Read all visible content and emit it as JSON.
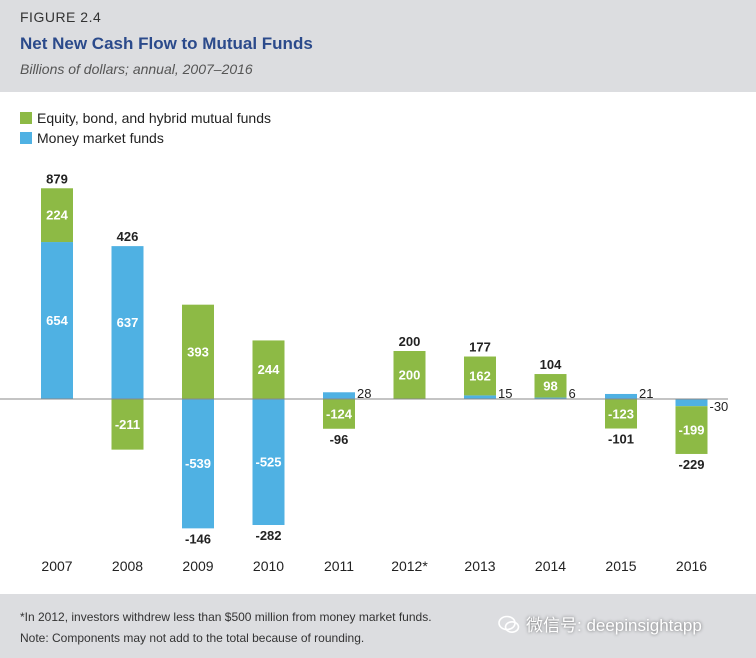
{
  "header": {
    "figure_label": "FIGURE 2.4",
    "title": "Net New Cash Flow to Mutual Funds",
    "subtitle": "Billions of dollars; annual, 2007–2016"
  },
  "legend": [
    {
      "label": "Equity, bond, and hybrid mutual funds",
      "color": "#8dba45"
    },
    {
      "label": "Money market funds",
      "color": "#4fb1e3"
    }
  ],
  "chart_data": {
    "type": "bar",
    "stacked": true,
    "categories": [
      "2007",
      "2008",
      "2009",
      "2010",
      "2011",
      "2012*",
      "2013",
      "2014",
      "2015",
      "2016"
    ],
    "series": [
      {
        "name": "Equity, bond, and hybrid mutual funds",
        "color": "#8dba45",
        "values": [
          224,
          -211,
          393,
          244,
          -124,
          200,
          162,
          98,
          -123,
          -199
        ]
      },
      {
        "name": "Money market funds",
        "color": "#4fb1e3",
        "values": [
          654,
          637,
          -539,
          -525,
          28,
          0,
          15,
          6,
          21,
          -30
        ]
      }
    ],
    "totals": [
      879,
      426,
      -146,
      -282,
      -96,
      200,
      177,
      104,
      -101,
      -229
    ],
    "segment_labels": [
      {
        "equity": "224",
        "money": "654"
      },
      {
        "equity": "-211",
        "money": "637"
      },
      {
        "equity": "393",
        "money": "-539"
      },
      {
        "equity": "244",
        "money": "-525"
      },
      {
        "equity": "-124",
        "money": "28"
      },
      {
        "equity": "200",
        "money": ""
      },
      {
        "equity": "162",
        "money": "15"
      },
      {
        "equity": "98",
        "money": "6"
      },
      {
        "equity": "-123",
        "money": "21"
      },
      {
        "equity": "-199",
        "money": "-30"
      }
    ],
    "total_labels": [
      "879",
      "426",
      "-146",
      "-282",
      "-96",
      "200",
      "177",
      "104",
      "-101",
      "-229"
    ],
    "grid": false,
    "legend_position": "top-left",
    "zero_line": true
  },
  "footer": {
    "footnote": "*In 2012, investors withdrew less than $500 million from money market funds.",
    "note": "Note: Components may not add to the total because of rounding."
  },
  "watermark": {
    "text": "微信号: deepinsightapp",
    "icon": "wechat-icon"
  }
}
